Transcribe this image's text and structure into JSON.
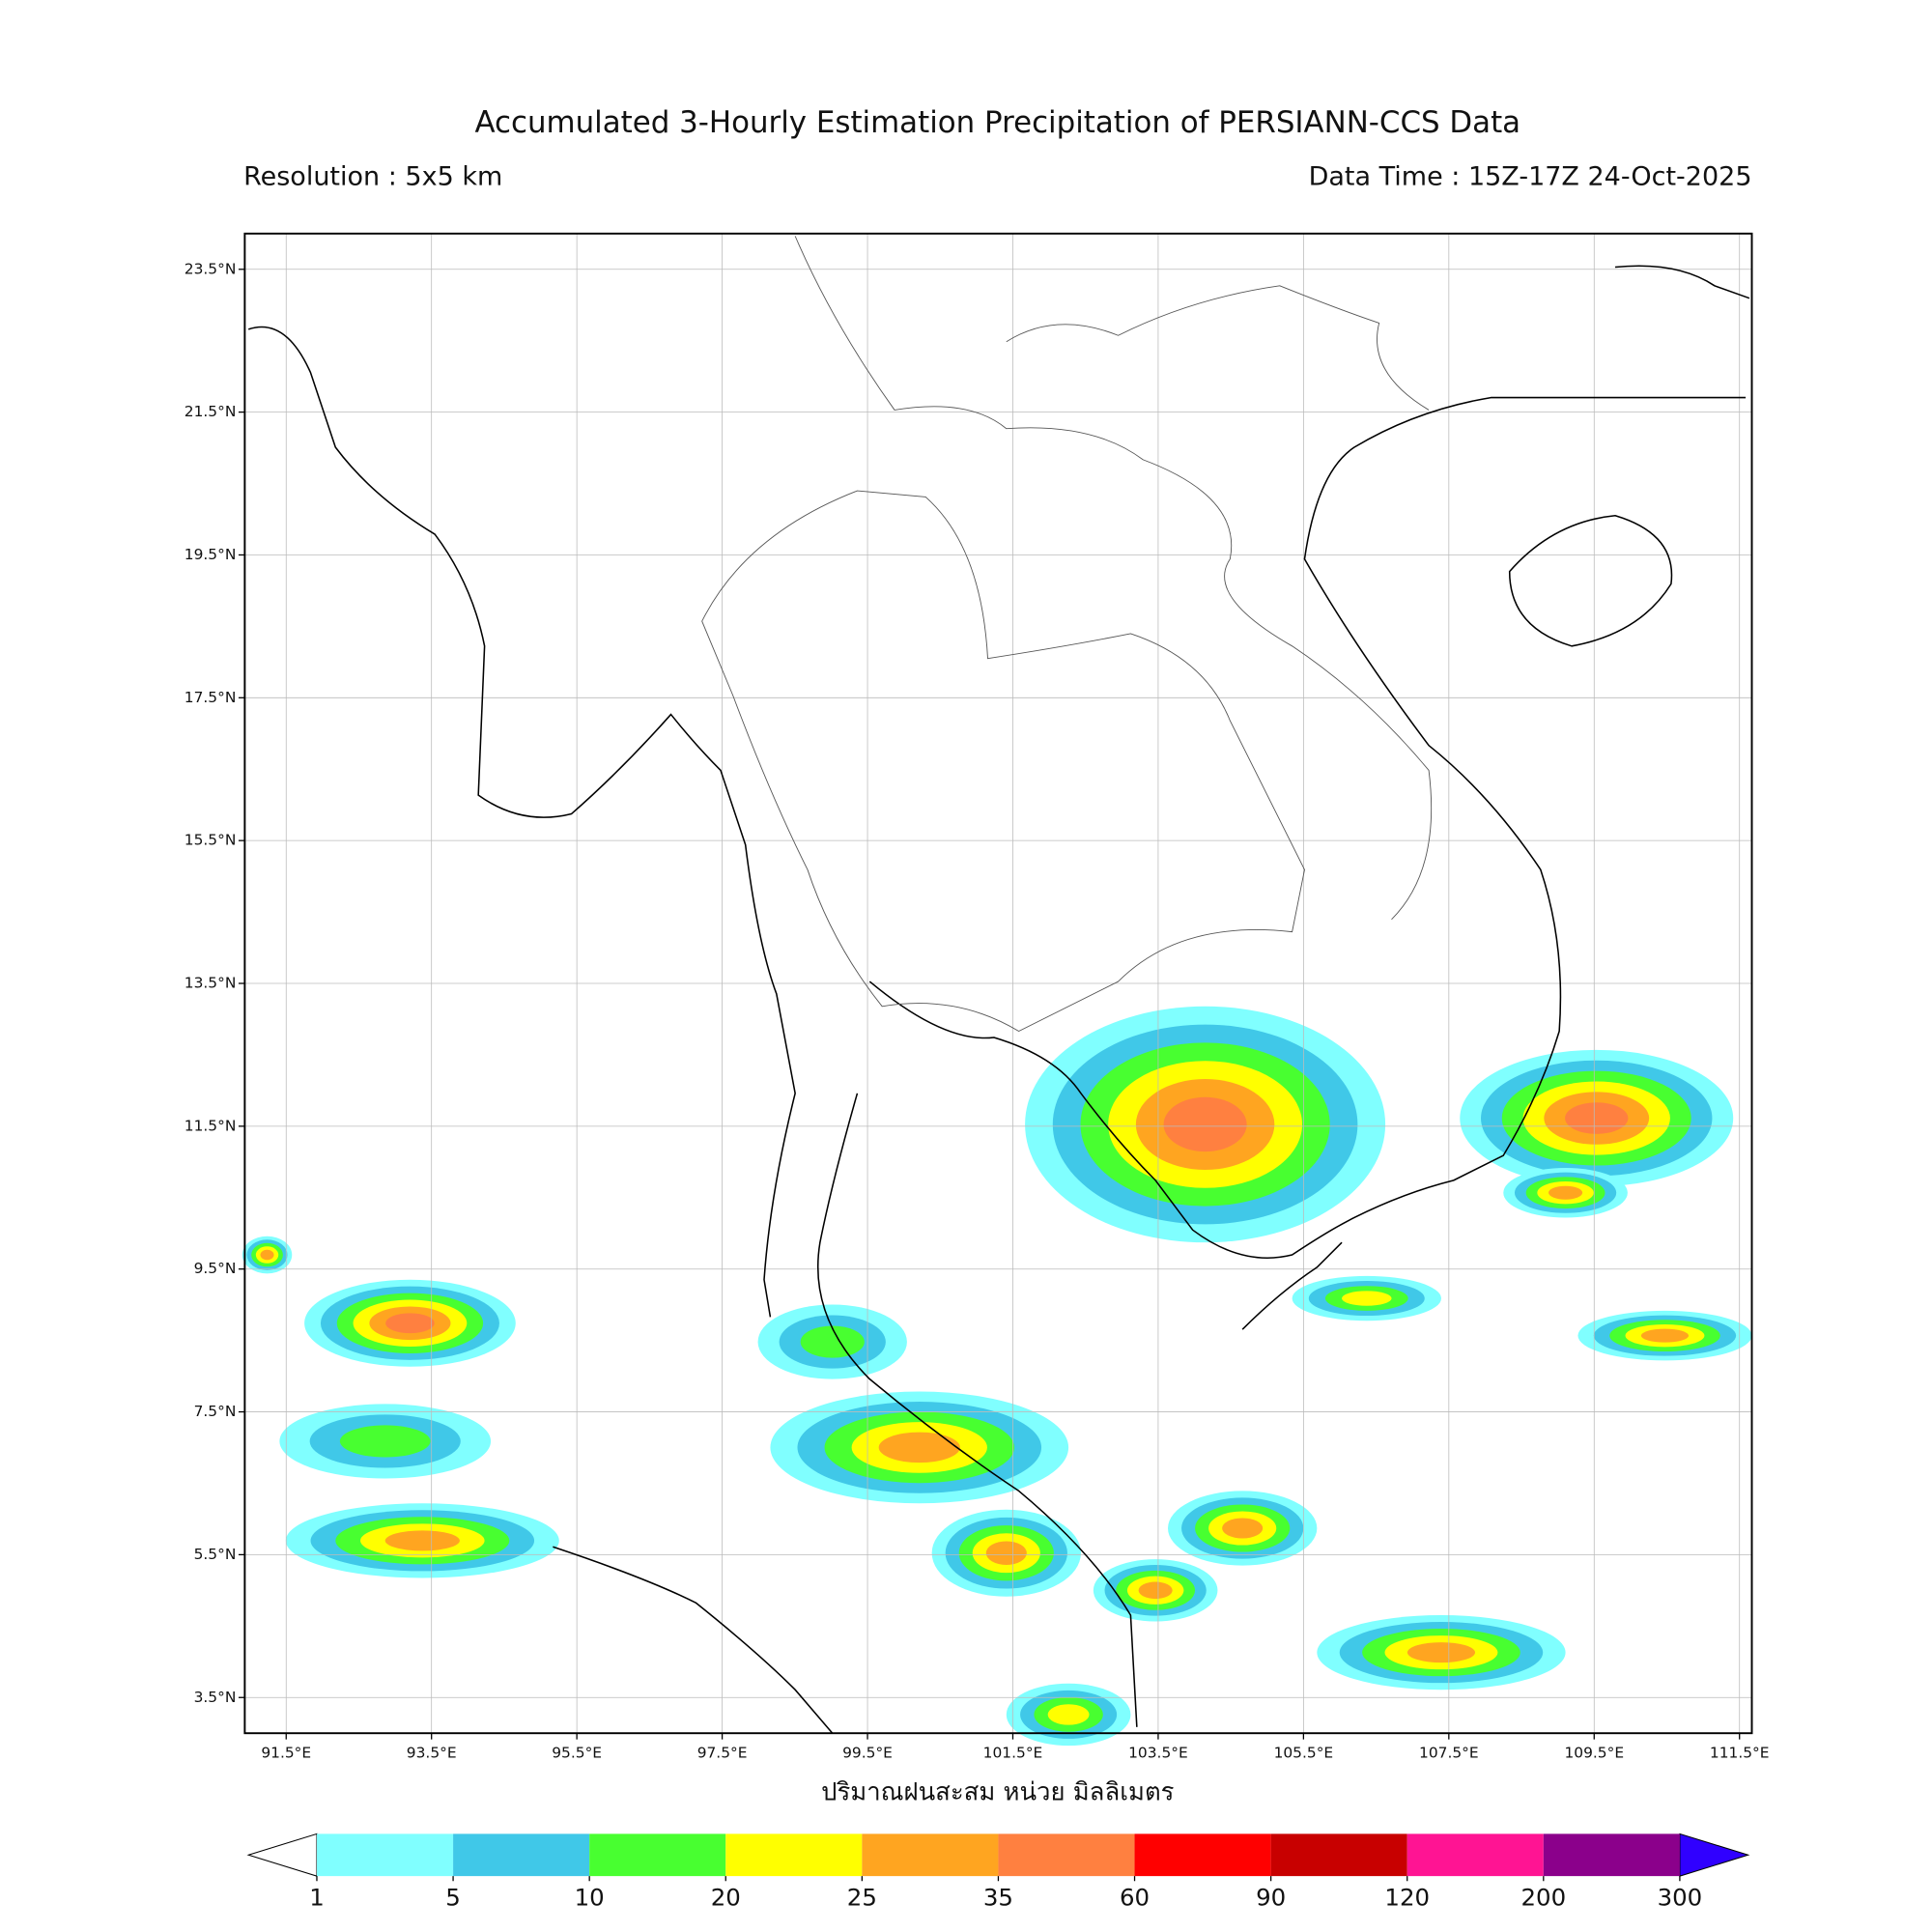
{
  "title": "Accumulated 3-Hourly Estimation Precipitation of PERSIANN-CCS Data",
  "resolution": "Resolution : 5x5 km",
  "data_time": "Data Time : 15Z-17Z 24-Oct-2025",
  "map": {
    "xlim": [
      90.93,
      111.67
    ],
    "ylim": [
      3.0,
      24.0
    ],
    "xticks": [
      {
        "value": 91.5,
        "label": "91.5°E"
      },
      {
        "value": 93.5,
        "label": "93.5°E"
      },
      {
        "value": 95.5,
        "label": "95.5°E"
      },
      {
        "value": 97.5,
        "label": "97.5°E"
      },
      {
        "value": 99.5,
        "label": "99.5°E"
      },
      {
        "value": 101.5,
        "label": "101.5°E"
      },
      {
        "value": 103.5,
        "label": "103.5°E"
      },
      {
        "value": 105.5,
        "label": "105.5°E"
      },
      {
        "value": 107.5,
        "label": "107.5°E"
      },
      {
        "value": 109.5,
        "label": "109.5°E"
      },
      {
        "value": 111.5,
        "label": "111.5°E"
      }
    ],
    "yticks": [
      {
        "value": 23.5,
        "label": "23.5°N"
      },
      {
        "value": 21.5,
        "label": "21.5°N"
      },
      {
        "value": 19.5,
        "label": "19.5°N"
      },
      {
        "value": 17.5,
        "label": "17.5°N"
      },
      {
        "value": 15.5,
        "label": "15.5°N"
      },
      {
        "value": 13.5,
        "label": "13.5°N"
      },
      {
        "value": 11.5,
        "label": "11.5°N"
      },
      {
        "value": 9.5,
        "label": "9.5°N"
      },
      {
        "value": 7.5,
        "label": "7.5°N"
      },
      {
        "value": 5.5,
        "label": "5.5°N"
      },
      {
        "value": 3.5,
        "label": "3.5°N"
      }
    ],
    "grid": true
  },
  "colorbar": {
    "label": "ปริมาณฝนสะสม หน่วย มิลลิเมตร",
    "levels": [
      1,
      5,
      10,
      20,
      25,
      35,
      60,
      90,
      120,
      200,
      300
    ],
    "colors": [
      "#80ffff",
      "#40c8e8",
      "#48ff30",
      "#ffff00",
      "#ffa520",
      "#ff8040",
      "#ff0000",
      "#c80000",
      "#ff1493",
      "#8b008b"
    ],
    "under_color": "#ffffff",
    "over_color": "#3000ff"
  }
}
